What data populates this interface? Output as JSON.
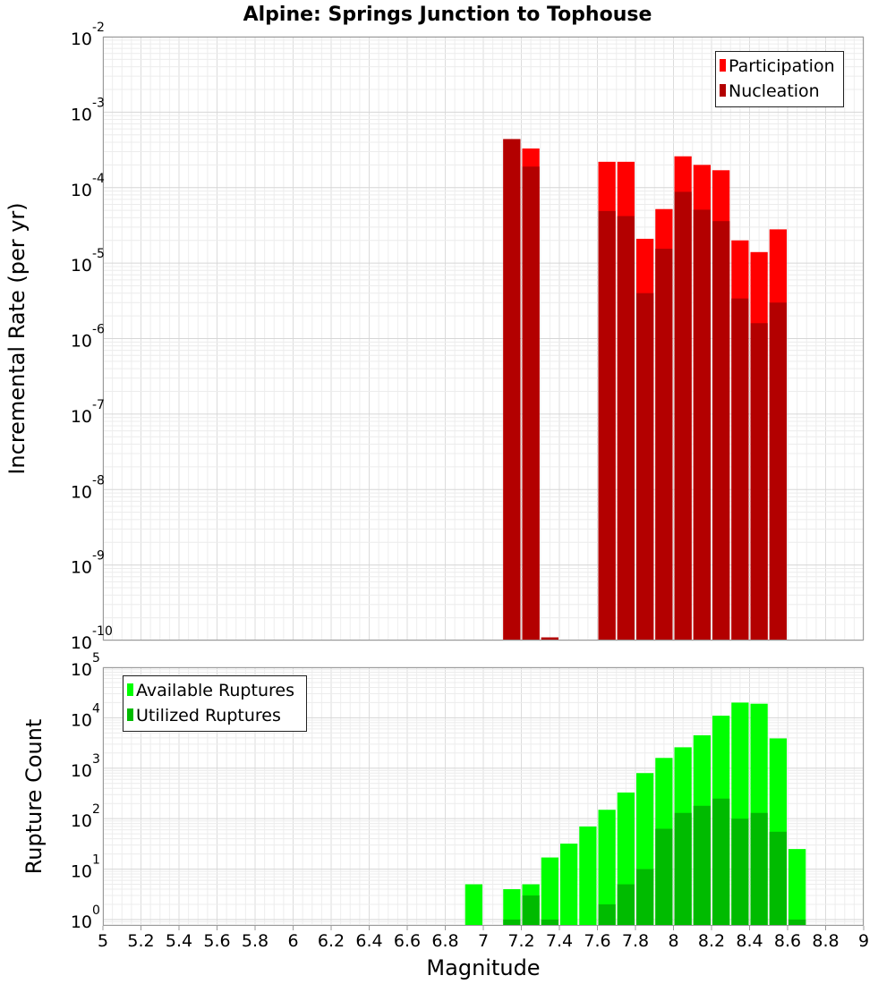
{
  "chart_data": [
    {
      "type": "bar",
      "title": "Alpine: Springs Junction to Tophouse",
      "ylabel": "Incremental Rate (per yr)",
      "xlabel": "",
      "yscale": "log",
      "ylim": [
        1e-10,
        0.01
      ],
      "xlim": [
        5,
        9
      ],
      "y_tick_labels": [
        {
          "base": "10",
          "exp": "-10"
        },
        {
          "base": "10",
          "exp": "-9"
        },
        {
          "base": "10",
          "exp": "-8"
        },
        {
          "base": "10",
          "exp": "-7"
        },
        {
          "base": "10",
          "exp": "-6"
        },
        {
          "base": "10",
          "exp": "-5"
        },
        {
          "base": "10",
          "exp": "-4"
        },
        {
          "base": "10",
          "exp": "-3"
        },
        {
          "base": "10",
          "exp": "-2"
        }
      ],
      "grid": true,
      "legend_position": "top-right",
      "bin_width": 0.1,
      "x": [
        7.15,
        7.25,
        7.35,
        7.65,
        7.75,
        7.85,
        7.95,
        8.05,
        8.15,
        8.25,
        8.35,
        8.45,
        8.55
      ],
      "series": [
        {
          "name": "Participation",
          "color": "#ff0000",
          "values": [
            0.00044,
            0.00033,
            1.1e-10,
            0.00022,
            0.00022,
            2.1e-05,
            5.2e-05,
            0.00026,
            0.0002,
            0.00017,
            2e-05,
            1.4e-05,
            2.8e-05
          ]
        },
        {
          "name": "Nucleation",
          "color": "#b30000",
          "values": [
            0.00044,
            0.00019,
            1.1e-10,
            4.9e-05,
            4.2e-05,
            4e-06,
            1.55e-05,
            8.8e-05,
            5.1e-05,
            3.6e-05,
            3.4e-06,
            1.6e-06,
            3e-06
          ]
        }
      ]
    },
    {
      "type": "bar",
      "title": "",
      "ylabel": "Rupture Count",
      "xlabel": "Magnitude",
      "yscale": "log",
      "ylim": [
        0.75,
        100000
      ],
      "xlim": [
        5,
        9
      ],
      "y_tick_labels": [
        {
          "base": "10",
          "exp": "0"
        },
        {
          "base": "10",
          "exp": "1"
        },
        {
          "base": "10",
          "exp": "2"
        },
        {
          "base": "10",
          "exp": "3"
        },
        {
          "base": "10",
          "exp": "4"
        },
        {
          "base": "10",
          "exp": "5"
        }
      ],
      "x_tick_labels": [
        "5",
        "5.2",
        "5.4",
        "5.6",
        "5.8",
        "6",
        "6.2",
        "6.4",
        "6.6",
        "6.8",
        "7",
        "7.2",
        "7.4",
        "7.6",
        "7.8",
        "8",
        "8.2",
        "8.4",
        "8.6",
        "8.8",
        "9"
      ],
      "grid": true,
      "legend_position": "top-left",
      "bin_width": 0.1,
      "x": [
        6.95,
        7.15,
        7.25,
        7.35,
        7.45,
        7.55,
        7.65,
        7.75,
        7.85,
        7.95,
        8.05,
        8.15,
        8.25,
        8.35,
        8.45,
        8.55,
        8.65
      ],
      "series": [
        {
          "name": "Available Ruptures",
          "color": "#00ff00",
          "values": [
            5,
            4,
            5,
            17,
            32,
            70,
            150,
            330,
            800,
            1600,
            2600,
            4500,
            11000,
            20000,
            19000,
            3900,
            25
          ]
        },
        {
          "name": "Utilized Ruptures",
          "color": "#00bb00",
          "values": [
            0,
            1,
            3,
            1,
            0,
            0,
            2,
            5,
            10,
            63,
            130,
            180,
            250,
            100,
            130,
            55,
            1
          ]
        }
      ]
    }
  ]
}
